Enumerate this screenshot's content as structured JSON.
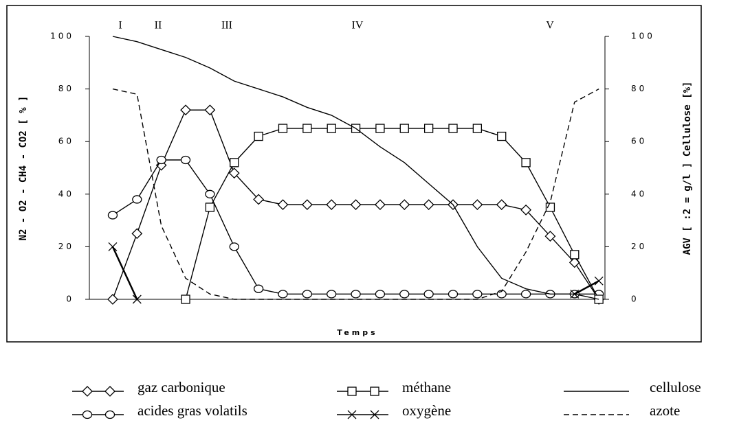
{
  "chart_data": {
    "type": "line",
    "xlabel": "Temps",
    "ylabel": "N2 - O2 - CH4 - CO2 [ % ]",
    "y2label": "AGV [ :2 = g/l ] Cellulose [%]",
    "annotations": [
      "I",
      "II",
      "III",
      "IV",
      "V"
    ],
    "x": [
      0,
      1,
      2,
      3,
      4,
      5,
      6,
      7,
      8,
      9,
      10,
      11,
      12,
      13,
      14,
      15,
      16,
      17,
      18,
      19,
      20
    ],
    "xlim": [
      -0.96,
      20.25
    ],
    "ylim": [
      0,
      100
    ],
    "yticks": [
      0,
      20,
      40,
      60,
      80,
      100
    ],
    "y2lim": [
      0,
      100
    ],
    "y2ticks": [
      0,
      20,
      40,
      60,
      80,
      100
    ],
    "series": [
      {
        "name": "gaz carbonique",
        "color": "#000000",
        "marker": "diamond",
        "values": [
          0,
          25,
          51,
          72,
          72,
          48,
          38,
          36,
          36,
          36,
          36,
          36,
          36,
          36,
          36,
          36,
          36,
          34,
          24,
          14,
          0
        ]
      },
      {
        "name": "acides gras volatils",
        "color": "#000000",
        "marker": "circle",
        "axis": "y2",
        "values": [
          32,
          38,
          53,
          53,
          40,
          20,
          4,
          2,
          2,
          2,
          2,
          2,
          2,
          2,
          2,
          2,
          2,
          2,
          2,
          2,
          2
        ]
      },
      {
        "name": "méthane",
        "color": "#000000",
        "marker": "square",
        "values": [
          null,
          null,
          null,
          0,
          35,
          52,
          62,
          65,
          65,
          65,
          65,
          65,
          65,
          65,
          65,
          65,
          62,
          52,
          35,
          17,
          0
        ]
      },
      {
        "name": "oxygène",
        "color": "#000000",
        "marker": "x",
        "values": [
          20,
          0,
          null,
          null,
          null,
          null,
          null,
          null,
          null,
          null,
          null,
          null,
          null,
          null,
          null,
          null,
          null,
          null,
          null,
          2,
          7
        ]
      },
      {
        "name": "cellulose",
        "color": "#000000",
        "marker": "none",
        "axis": "y2",
        "values": [
          100,
          98,
          95,
          92,
          88,
          83,
          80,
          77,
          73,
          70,
          65,
          58,
          52,
          44,
          36,
          20,
          8,
          4,
          2,
          2,
          0
        ]
      },
      {
        "name": "azote",
        "color": "#000000",
        "marker": "none",
        "dash": true,
        "values": [
          80,
          78,
          28,
          8,
          2,
          0,
          0,
          0,
          0,
          0,
          0,
          0,
          0,
          0,
          0,
          0,
          3,
          18,
          37,
          75,
          80
        ]
      }
    ]
  }
}
